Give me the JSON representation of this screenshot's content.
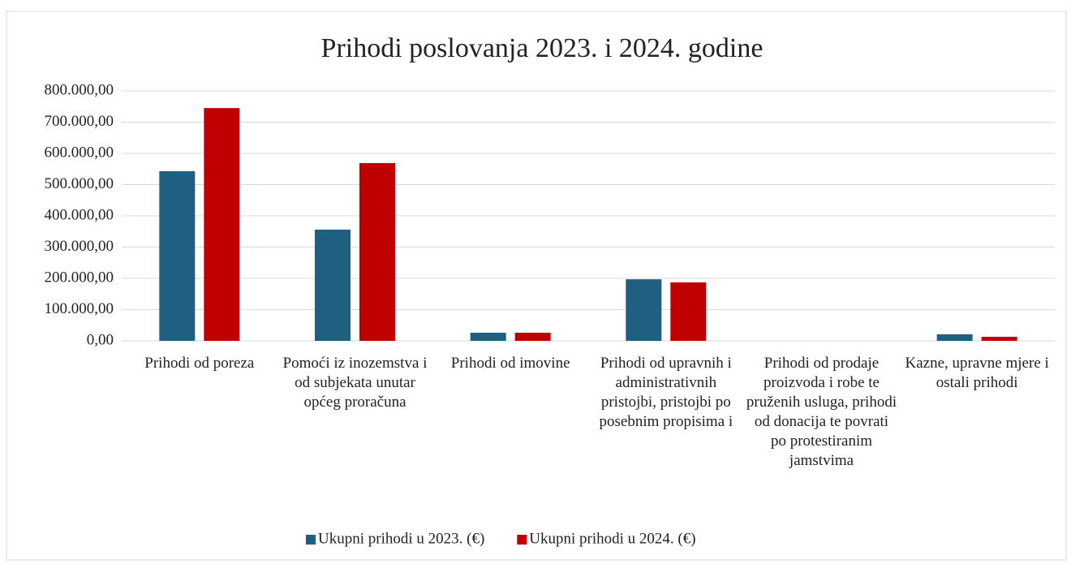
{
  "chart_data": {
    "type": "bar",
    "title": "Prihodi poslovanja 2023. i 2024. godine",
    "categories": [
      "Prihodi od poreza",
      "Pomoći iz inozemstva i od subjekata unutar općeg proračuna",
      "Prihodi od imovine",
      "Prihodi od upravnih i administrativnih pristojbi, pristojbi po posebnim propisima i",
      "Prihodi od prodaje proizvoda i robe te pruženih usluga, prihodi od donacija te povrati po protestiranim jamstvima",
      "Kazne, upravne mjere i ostali prihodi"
    ],
    "series": [
      {
        "name": "Ukupni prihodi u 2023. (€)",
        "color": "#1f5f80",
        "values": [
          543000,
          356000,
          26000,
          197000,
          0,
          21000
        ]
      },
      {
        "name": "Ukupni prihodi u 2024. (€)",
        "color": "#c00000",
        "values": [
          745000,
          569000,
          26000,
          187000,
          0,
          13000
        ]
      }
    ],
    "ylim": [
      0,
      800000
    ],
    "yticks": [
      {
        "value": 0,
        "label": "0,00"
      },
      {
        "value": 100000,
        "label": "100.000,00"
      },
      {
        "value": 200000,
        "label": "200.000,00"
      },
      {
        "value": 300000,
        "label": "300.000,00"
      },
      {
        "value": 400000,
        "label": "400.000,00"
      },
      {
        "value": 500000,
        "label": "500.000,00"
      },
      {
        "value": 600000,
        "label": "600.000,00"
      },
      {
        "value": 700000,
        "label": "700.000,00"
      },
      {
        "value": 800000,
        "label": "800.000,00"
      }
    ],
    "grid": true,
    "legend": "bottom"
  }
}
